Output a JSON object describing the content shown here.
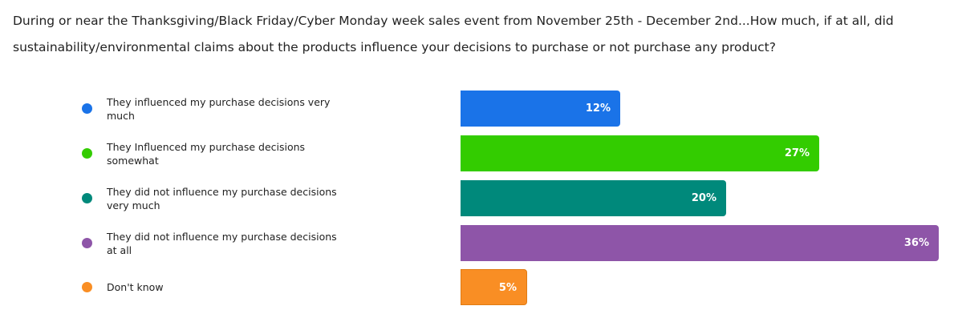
{
  "chart_data": {
    "type": "bar",
    "orientation": "horizontal",
    "title": "During or near the Thanksgiving/Black Friday/Cyber Monday week sales event from November 25th - December 2nd...How much, if at all, did sustainability/environmental claims about the products influence your decisions to purchase or not purchase any product?",
    "categories": [
      "They influenced my purchase decisions very much",
      "They Influenced my purchase decisions somewhat",
      "They did not influence my purchase decisions very much",
      "They did not influence my purchase decisions at all",
      "Don't know"
    ],
    "values": [
      12,
      27,
      20,
      36,
      5
    ],
    "value_labels": [
      "12%",
      "27%",
      "20%",
      "36%",
      "5%"
    ],
    "colors": [
      "#1a73e8",
      "#33cc00",
      "#00897b",
      "#8e55a8",
      "#f98e24"
    ],
    "xlim": [
      0,
      36
    ],
    "grid": false,
    "legend_position": "left"
  }
}
